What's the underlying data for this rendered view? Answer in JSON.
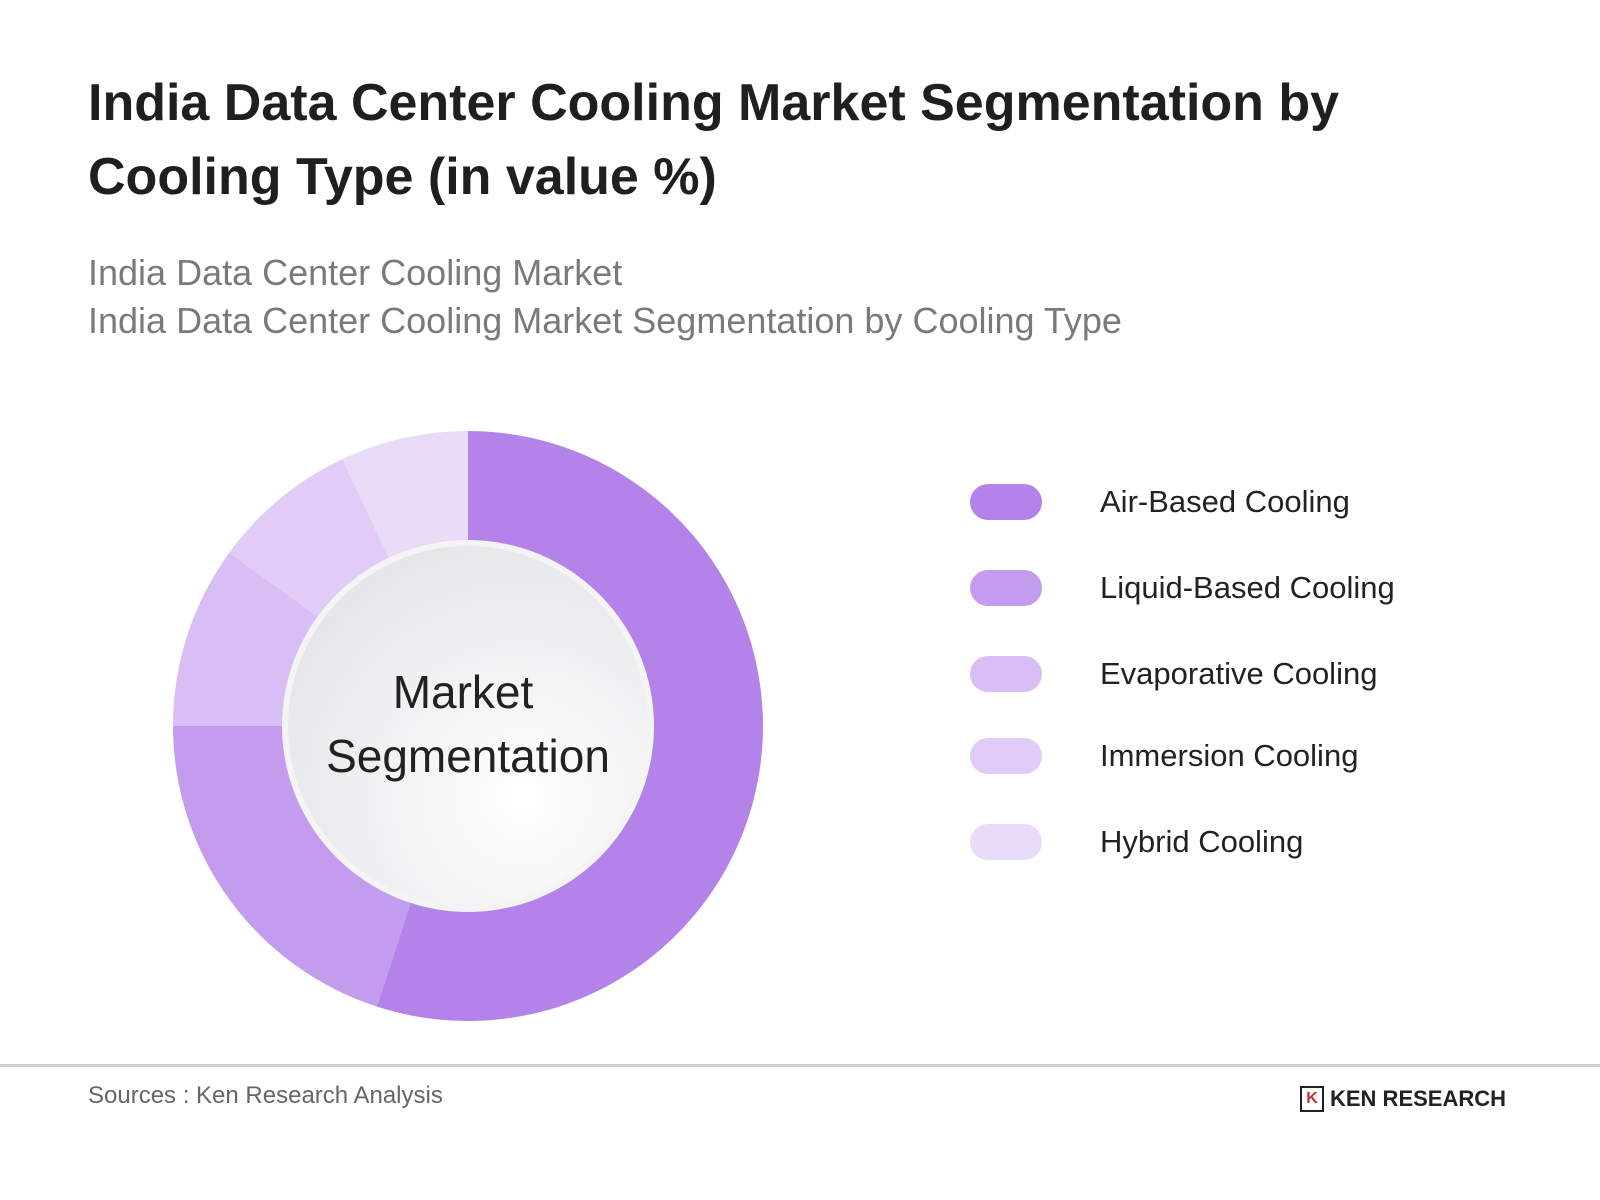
{
  "chart_data": {
    "type": "pie",
    "variant": "donut",
    "title": "India Data Center Cooling Market Segmentation by Cooling Type (in value %)",
    "subtitle_lines": [
      "India Data Center Cooling Market",
      "India Data Center Cooling Market Segmentation by Cooling Type"
    ],
    "center_label": [
      "Market",
      "Segmentation"
    ],
    "categories": [
      "Air-Based Cooling",
      "Liquid-Based Cooling",
      "Evaporative Cooling",
      "Immersion Cooling",
      "Hybrid Cooling"
    ],
    "values": [
      55,
      20,
      10,
      8,
      7
    ],
    "colors": [
      "#b483ea",
      "#c49cee",
      "#d9bdf5",
      "#e1cbf7",
      "#e9dcf9"
    ],
    "legend_position": "right"
  },
  "footer": {
    "source": "Sources : Ken Research Analysis",
    "logo_text": "KEN RESEARCH",
    "logo_mark": "K"
  }
}
